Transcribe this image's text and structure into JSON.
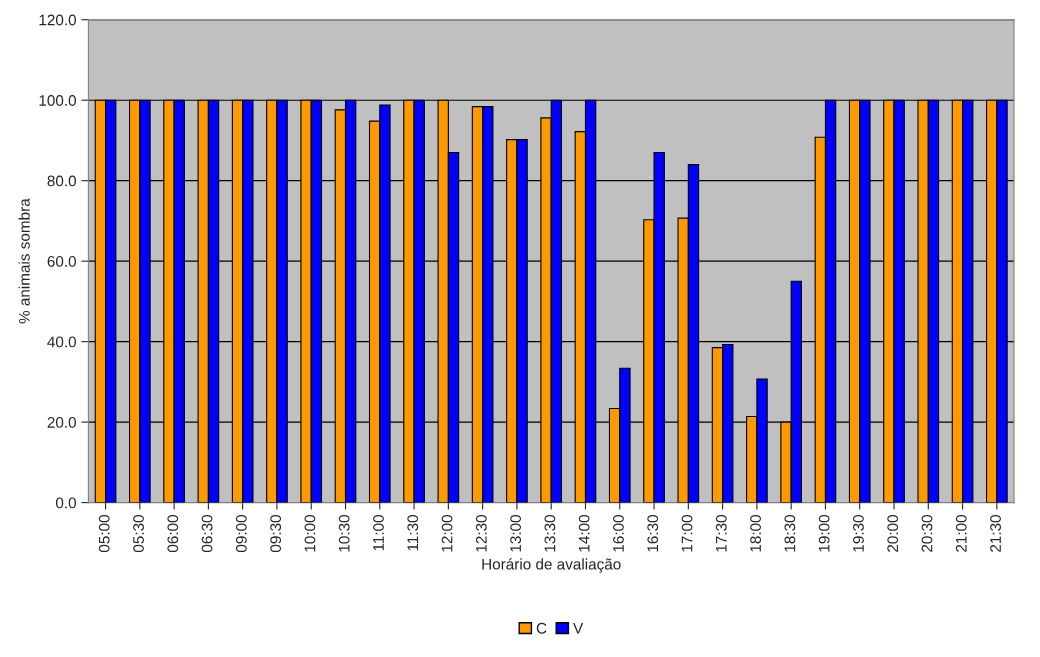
{
  "chart_data": {
    "type": "bar",
    "xlabel": "Horário de avaliação",
    "ylabel": "% animais sombra",
    "categories": [
      "05:00",
      "05:30",
      "06:00",
      "06:30",
      "09:00",
      "09:30",
      "10:00",
      "10:30",
      "11:00",
      "11:30",
      "12:00",
      "12:30",
      "13:00",
      "13:30",
      "14:00",
      "16:00",
      "16:30",
      "17:00",
      "17:30",
      "18:00",
      "18:30",
      "19:00",
      "19:30",
      "20:00",
      "20:30",
      "21:00",
      "21:30"
    ],
    "series": [
      {
        "name": "C",
        "color": "#ff9900",
        "values": [
          100,
          100,
          100,
          100,
          100,
          100,
          100,
          97.6,
          94.8,
          100,
          100,
          98.4,
          90.2,
          95.6,
          92.2,
          23.4,
          70.3,
          70.7,
          38.5,
          21.4,
          20.0,
          90.8,
          100,
          100,
          100,
          100,
          100
        ]
      },
      {
        "name": "V",
        "color": "#0000ff",
        "values": [
          100,
          100,
          100,
          100,
          100,
          100,
          100,
          100,
          98.8,
          100,
          87.0,
          98.4,
          90.2,
          100,
          100,
          33.4,
          87.0,
          84.0,
          39.3,
          30.7,
          55.0,
          100,
          100,
          100,
          100,
          100,
          100
        ]
      }
    ],
    "ylim": [
      0,
      120
    ],
    "yticks": [
      {
        "value": 0,
        "label": "0.0"
      },
      {
        "value": 20,
        "label": "20.0"
      },
      {
        "value": 40,
        "label": "40.0"
      },
      {
        "value": 60,
        "label": "60.0"
      },
      {
        "value": 80,
        "label": "80.0"
      },
      {
        "value": 100,
        "label": "100.0"
      },
      {
        "value": 120,
        "label": "120.0"
      }
    ],
    "grid": "y",
    "legend": "bottom"
  }
}
